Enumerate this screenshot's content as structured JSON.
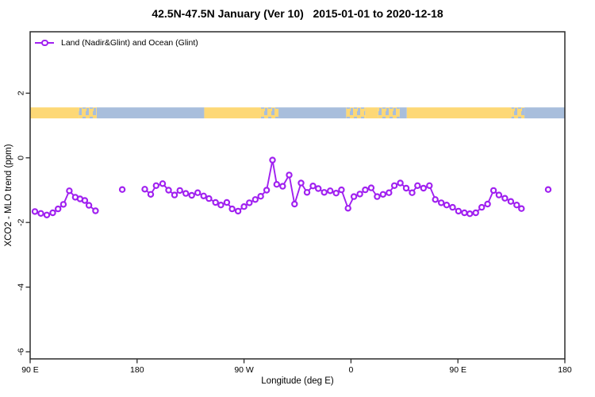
{
  "title": "42.5N-47.5N January (Ver 10)   2015-01-01 to 2020-12-18",
  "legend": {
    "label": "Land (Nadir&Glint) and Ocean (Glint)",
    "marker": "open-circle-on-line"
  },
  "colors": {
    "series": "#A020F0",
    "marker_fill": "#ffffff",
    "land": "#FDD876",
    "ocean": "#A8BEDC",
    "axis": "#2b2b2b",
    "text": "#000000"
  },
  "chart_data": {
    "type": "line",
    "title": "42.5N-47.5N January (Ver 10)   2015-01-01 to 2020-12-18",
    "xlabel": "Longitude (deg E)",
    "ylabel": "XCO2 - MLO trend (ppm)",
    "grid": false,
    "legend_position": "top-left-inside",
    "x_axis": {
      "range": [
        90,
        540
      ],
      "ticks": [
        90,
        180,
        270,
        360,
        450,
        540
      ],
      "tick_labels": [
        "90 E",
        "180",
        "90 W",
        "0",
        "90 E",
        "180"
      ]
    },
    "y_axis": {
      "range": [
        -6.22,
        3.9
      ],
      "ticks": [
        2,
        0,
        -2,
        -4,
        -6
      ],
      "tick_labels": [
        "2",
        "0",
        "-2",
        "-4",
        "-6"
      ]
    },
    "land_ocean_strip": {
      "y_range": [
        1.22,
        1.56
      ],
      "segments": [
        {
          "from": 90,
          "to": 131,
          "type": "land"
        },
        {
          "from": 131,
          "to": 146,
          "type": "mixed"
        },
        {
          "from": 146,
          "to": 236.5,
          "type": "ocean"
        },
        {
          "from": 236.5,
          "to": 284,
          "type": "land"
        },
        {
          "from": 284,
          "to": 299,
          "type": "mixed"
        },
        {
          "from": 299,
          "to": 356,
          "type": "ocean"
        },
        {
          "from": 356,
          "to": 372,
          "type": "mixed"
        },
        {
          "from": 372,
          "to": 383,
          "type": "land"
        },
        {
          "from": 383,
          "to": 401,
          "type": "mixed"
        },
        {
          "from": 401,
          "to": 407,
          "type": "ocean"
        },
        {
          "from": 407,
          "to": 495,
          "type": "land"
        },
        {
          "from": 495,
          "to": 506,
          "type": "mixed"
        },
        {
          "from": 506,
          "to": 540,
          "type": "ocean"
        }
      ]
    },
    "series": [
      {
        "name": "west-pacific-cluster",
        "points": [
          [
            94,
            -1.66
          ],
          [
            99,
            -1.72
          ],
          [
            104,
            -1.77
          ],
          [
            109,
            -1.7
          ],
          [
            113.5,
            -1.58
          ],
          [
            118,
            -1.44
          ],
          [
            123,
            -1.02
          ],
          [
            128,
            -1.22
          ],
          [
            132,
            -1.27
          ],
          [
            136,
            -1.32
          ],
          [
            139.5,
            -1.47
          ],
          [
            145,
            -1.64
          ]
        ]
      },
      {
        "name": "isolated-point-1",
        "points": [
          [
            167.5,
            -0.98
          ]
        ]
      },
      {
        "name": "main-series",
        "points": [
          [
            186.5,
            -0.97
          ],
          [
            191.5,
            -1.13
          ],
          [
            196,
            -0.86
          ],
          [
            201.5,
            -0.8
          ],
          [
            206.5,
            -1.0
          ],
          [
            211.5,
            -1.15
          ],
          [
            216,
            -1.01
          ],
          [
            221,
            -1.1
          ],
          [
            226,
            -1.16
          ],
          [
            231,
            -1.08
          ],
          [
            236,
            -1.18
          ],
          [
            240.5,
            -1.26
          ],
          [
            246,
            -1.38
          ],
          [
            250.5,
            -1.46
          ],
          [
            255.5,
            -1.38
          ],
          [
            260,
            -1.58
          ],
          [
            265,
            -1.65
          ],
          [
            270,
            -1.51
          ],
          [
            274.5,
            -1.39
          ],
          [
            279.5,
            -1.29
          ],
          [
            284,
            -1.19
          ],
          [
            289,
            -1.0
          ],
          [
            294,
            -0.07
          ],
          [
            297.5,
            -0.82
          ],
          [
            302.5,
            -0.88
          ],
          [
            308,
            -0.53
          ],
          [
            312.5,
            -1.43
          ],
          [
            318,
            -0.78
          ],
          [
            323,
            -1.07
          ],
          [
            328,
            -0.87
          ],
          [
            332.5,
            -0.95
          ],
          [
            337.5,
            -1.07
          ],
          [
            342.5,
            -1.02
          ],
          [
            347.5,
            -1.09
          ],
          [
            352,
            -0.99
          ],
          [
            357.5,
            -1.56
          ],
          [
            362.5,
            -1.2
          ],
          [
            367.5,
            -1.12
          ],
          [
            372,
            -0.99
          ],
          [
            377,
            -0.93
          ],
          [
            382,
            -1.2
          ],
          [
            387,
            -1.13
          ],
          [
            392,
            -1.08
          ],
          [
            396.5,
            -0.86
          ],
          [
            401.5,
            -0.78
          ],
          [
            406.5,
            -0.94
          ],
          [
            411.5,
            -1.08
          ],
          [
            416,
            -0.86
          ],
          [
            421,
            -0.94
          ],
          [
            426,
            -0.86
          ],
          [
            431,
            -1.29
          ],
          [
            436,
            -1.39
          ],
          [
            440.5,
            -1.46
          ],
          [
            445.5,
            -1.53
          ],
          [
            450.5,
            -1.65
          ],
          [
            455.5,
            -1.7
          ],
          [
            460,
            -1.73
          ],
          [
            465,
            -1.7
          ],
          [
            470,
            -1.53
          ],
          [
            475,
            -1.43
          ],
          [
            480,
            -1.01
          ],
          [
            484.5,
            -1.15
          ],
          [
            489.5,
            -1.25
          ],
          [
            494.5,
            -1.35
          ],
          [
            499.5,
            -1.46
          ],
          [
            503.5,
            -1.57
          ]
        ]
      },
      {
        "name": "isolated-point-2",
        "points": [
          [
            526,
            -0.98
          ]
        ]
      }
    ]
  }
}
